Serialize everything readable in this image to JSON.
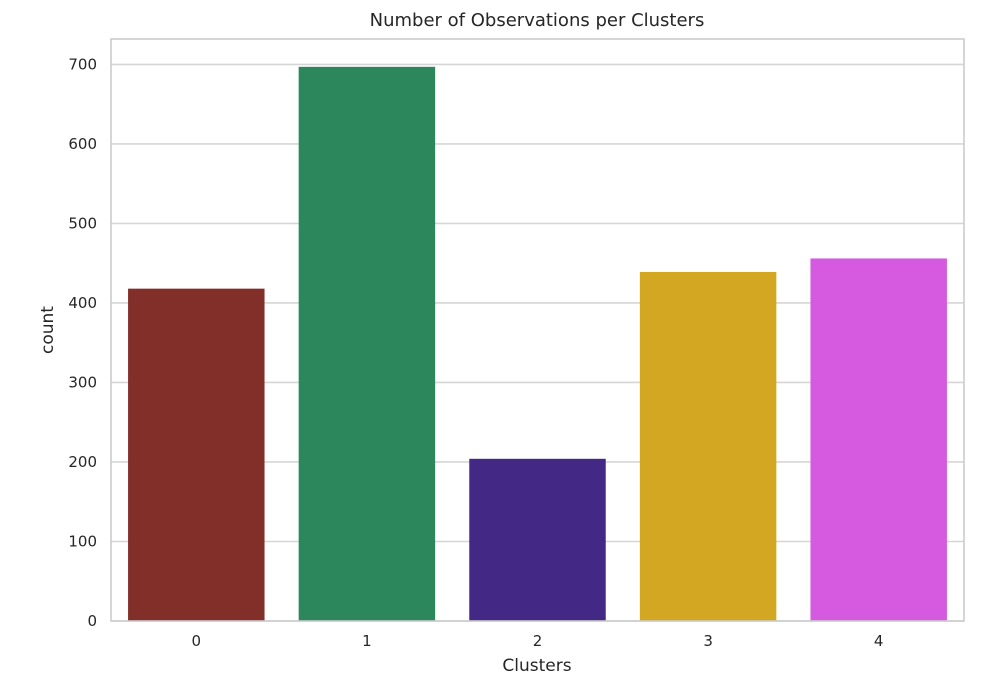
{
  "chart_data": {
    "type": "bar",
    "title": "Number of Observations per Clusters",
    "xlabel": "Clusters",
    "ylabel": "count",
    "categories": [
      "0",
      "1",
      "2",
      "3",
      "4"
    ],
    "values": [
      418,
      697,
      204,
      439,
      456
    ],
    "colors": [
      "#832f29",
      "#2c875c",
      "#432886",
      "#d4a723",
      "#d55ae0"
    ],
    "ylim": [
      0,
      732
    ],
    "yticks": [
      0,
      100,
      200,
      300,
      400,
      500,
      600,
      700
    ],
    "grid": "horizontal",
    "legend": "none"
  }
}
